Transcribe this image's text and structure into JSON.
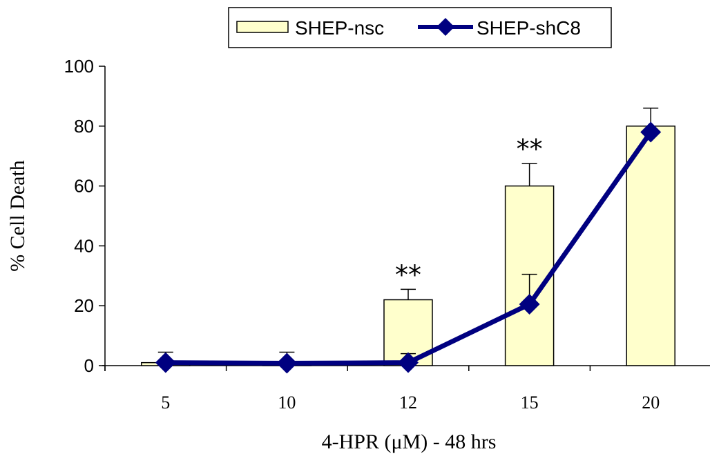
{
  "chart_data": {
    "type": "bar",
    "categories": [
      "5",
      "10",
      "12",
      "15",
      "20"
    ],
    "xlabel": "4-HPR (μM) - 48 hrs",
    "ylabel": "% Cell Death",
    "ylim": [
      0,
      100
    ],
    "yticks": [
      0,
      20,
      40,
      60,
      80,
      100
    ],
    "grid": false,
    "legend_position": "top",
    "series": [
      {
        "name": "SHEP-nsc",
        "kind": "bar",
        "color": "#FFFFCC",
        "values": [
          1,
          0.5,
          22,
          60,
          80
        ],
        "error": [
          3.5,
          4,
          3.5,
          7.5,
          6
        ]
      },
      {
        "name": "SHEP-shC8",
        "kind": "line",
        "color": "#000080",
        "values": [
          1,
          0.8,
          1,
          20.5,
          78
        ],
        "error": [
          0,
          0,
          3,
          10,
          0
        ]
      }
    ],
    "annotations": [
      {
        "category": "12",
        "text": "**"
      },
      {
        "category": "15",
        "text": "**"
      }
    ]
  }
}
